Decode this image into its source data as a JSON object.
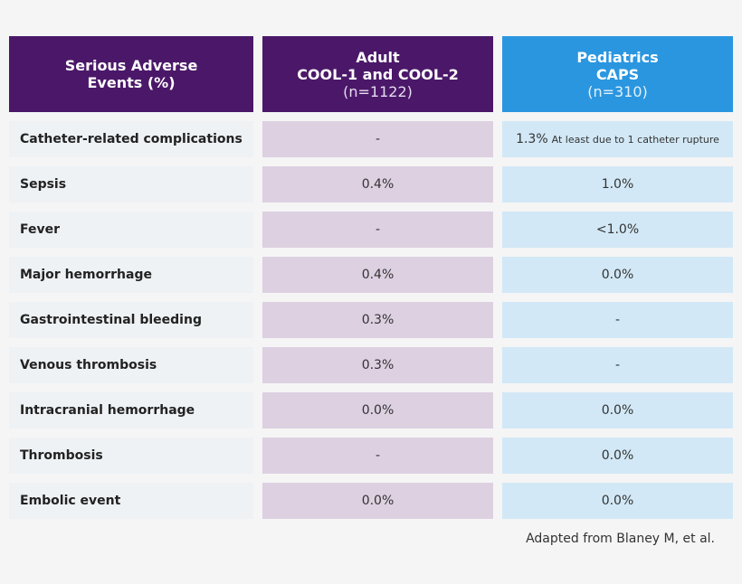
{
  "header": {
    "col1": {
      "line1": "Serious Adverse",
      "line2": "Events (%)"
    },
    "col2": {
      "line1": "Adult",
      "line2": "COOL-1 and COOL-2",
      "n": "(n=1122)"
    },
    "col3": {
      "line1": "Pediatrics",
      "line2": "CAPS",
      "n": "(n=310)"
    }
  },
  "rows": [
    {
      "label": "Catheter-related complications",
      "adult": "-",
      "ped": "1.3%",
      "ped_note": "At least due to 1 catheter rupture"
    },
    {
      "label": "Sepsis",
      "adult": "0.4%",
      "ped": "1.0%",
      "ped_note": ""
    },
    {
      "label": "Fever",
      "adult": "-",
      "ped": "<1.0%",
      "ped_note": ""
    },
    {
      "label": "Major hemorrhage",
      "adult": "0.4%",
      "ped": "0.0%",
      "ped_note": ""
    },
    {
      "label": "Gastrointestinal bleeding",
      "adult": "0.3%",
      "ped": "-",
      "ped_note": ""
    },
    {
      "label": "Venous thrombosis",
      "adult": "0.3%",
      "ped": "-",
      "ped_note": ""
    },
    {
      "label": "Intracranial hemorrhage",
      "adult": "0.0%",
      "ped": "0.0%",
      "ped_note": ""
    },
    {
      "label": "Thrombosis",
      "adult": "-",
      "ped": "0.0%",
      "ped_note": ""
    },
    {
      "label": "Embolic event",
      "adult": "0.0%",
      "ped": "0.0%",
      "ped_note": ""
    }
  ],
  "footnote": "Adapted from Blaney M, et al.",
  "colors": {
    "adult_header": "#4b1869",
    "ped_header": "#2a96e0",
    "adult_cell": "#dcd0e1",
    "ped_cell": "#d2e8f6",
    "label_cell": "#eef2f5"
  }
}
